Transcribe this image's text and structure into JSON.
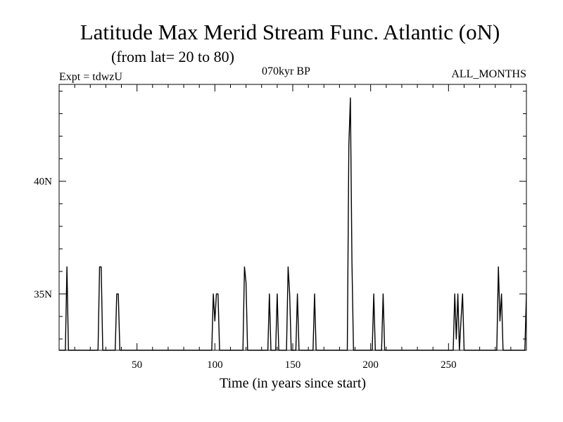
{
  "chart_data": {
    "type": "line",
    "title": "Latitude Max Merid Stream Func. Atlantic (oN)",
    "subtitle": "(from lat= 20 to 80)",
    "expt_label": "Expt = tdwzU",
    "period_label": "070kyr BP",
    "months_label": "ALL_MONTHS",
    "xlabel": "Time (in years since start)",
    "ylabel": "",
    "xlim": [
      0,
      300
    ],
    "ylim": [
      32.5,
      44.3
    ],
    "x_ticks": [
      50,
      100,
      150,
      200,
      250
    ],
    "x_tick_labels": [
      "50",
      "100",
      "150",
      "200",
      "250"
    ],
    "y_ticks": [
      35,
      40
    ],
    "y_tick_labels": [
      "35N",
      "40N"
    ],
    "grid": false,
    "line_color": "#000000",
    "series": [
      {
        "x": [
          0,
          4,
          5,
          6,
          7,
          25,
          26,
          27,
          28,
          36,
          37,
          38,
          39,
          98,
          99,
          100,
          101,
          102,
          103,
          118,
          119,
          120,
          121,
          134,
          135,
          136,
          139,
          140,
          141,
          146,
          147,
          148,
          149,
          152,
          153,
          154,
          163,
          164,
          165,
          185,
          186,
          187,
          188,
          189,
          201,
          202,
          203,
          207,
          208,
          209,
          253,
          254,
          255,
          256,
          257,
          258,
          259,
          260,
          281,
          282,
          283,
          284,
          285,
          299,
          300
        ],
        "y": [
          32.5,
          32.5,
          36.2,
          32.5,
          32.5,
          32.5,
          36.2,
          36.2,
          32.5,
          32.5,
          35.0,
          35.0,
          32.5,
          32.5,
          35.0,
          33.8,
          35.0,
          35.0,
          32.5,
          32.5,
          36.2,
          35.5,
          32.5,
          32.5,
          35.0,
          32.5,
          32.5,
          35.0,
          32.5,
          32.5,
          36.2,
          35.0,
          32.5,
          32.5,
          35.0,
          32.5,
          32.5,
          35.0,
          32.5,
          32.5,
          41.6,
          43.7,
          36.4,
          32.5,
          32.5,
          35.0,
          32.5,
          32.5,
          35.0,
          32.5,
          32.5,
          35.0,
          33.0,
          35.0,
          32.5,
          33.8,
          35.0,
          32.5,
          32.5,
          36.2,
          33.8,
          35.0,
          32.5,
          32.5,
          35.0
        ]
      }
    ]
  }
}
